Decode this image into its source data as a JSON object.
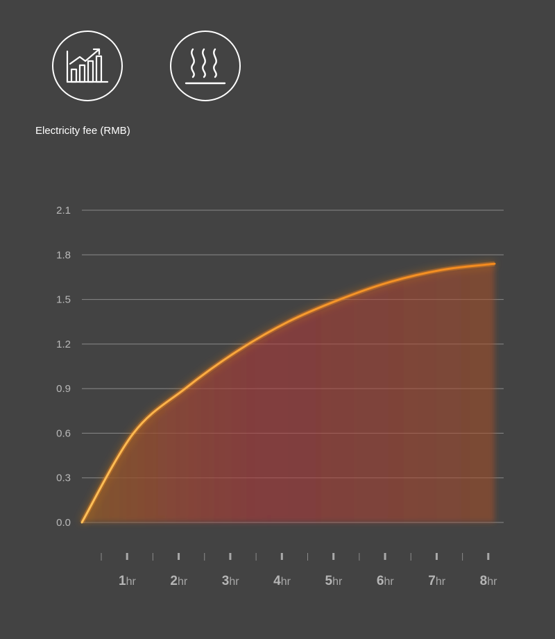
{
  "header": {
    "icons": [
      {
        "name": "rising-chart-icon"
      },
      {
        "name": "heat-waves-icon"
      }
    ],
    "caption": "Electricity fee (RMB)"
  },
  "colors": {
    "background": "#434343",
    "curve": "#f38a1e",
    "curve_start": "#ffc15a",
    "fill": "#b4373b",
    "grid": "#8a8a8a"
  },
  "chart_data": {
    "type": "area",
    "title": "Electricity fee (RMB)",
    "xlabel": "",
    "ylabel": "",
    "x": [
      0,
      1,
      2,
      3,
      4,
      5,
      6,
      7,
      8
    ],
    "values": [
      0.0,
      0.6,
      0.9,
      1.15,
      1.35,
      1.5,
      1.62,
      1.7,
      1.74
    ],
    "ylim": [
      0,
      2.1
    ],
    "yticks": [
      "0.0",
      "0.3",
      "0.6",
      "0.9",
      "1.2",
      "1.5",
      "1.8",
      "2.1"
    ],
    "xticks": [
      {
        "num": "1",
        "unit": "hr"
      },
      {
        "num": "2",
        "unit": "hr"
      },
      {
        "num": "3",
        "unit": "hr"
      },
      {
        "num": "4",
        "unit": "hr"
      },
      {
        "num": "5",
        "unit": "hr"
      },
      {
        "num": "6",
        "unit": "hr"
      },
      {
        "num": "7",
        "unit": "hr"
      },
      {
        "num": "8",
        "unit": "hr"
      }
    ],
    "grid": true,
    "legend": "none"
  }
}
